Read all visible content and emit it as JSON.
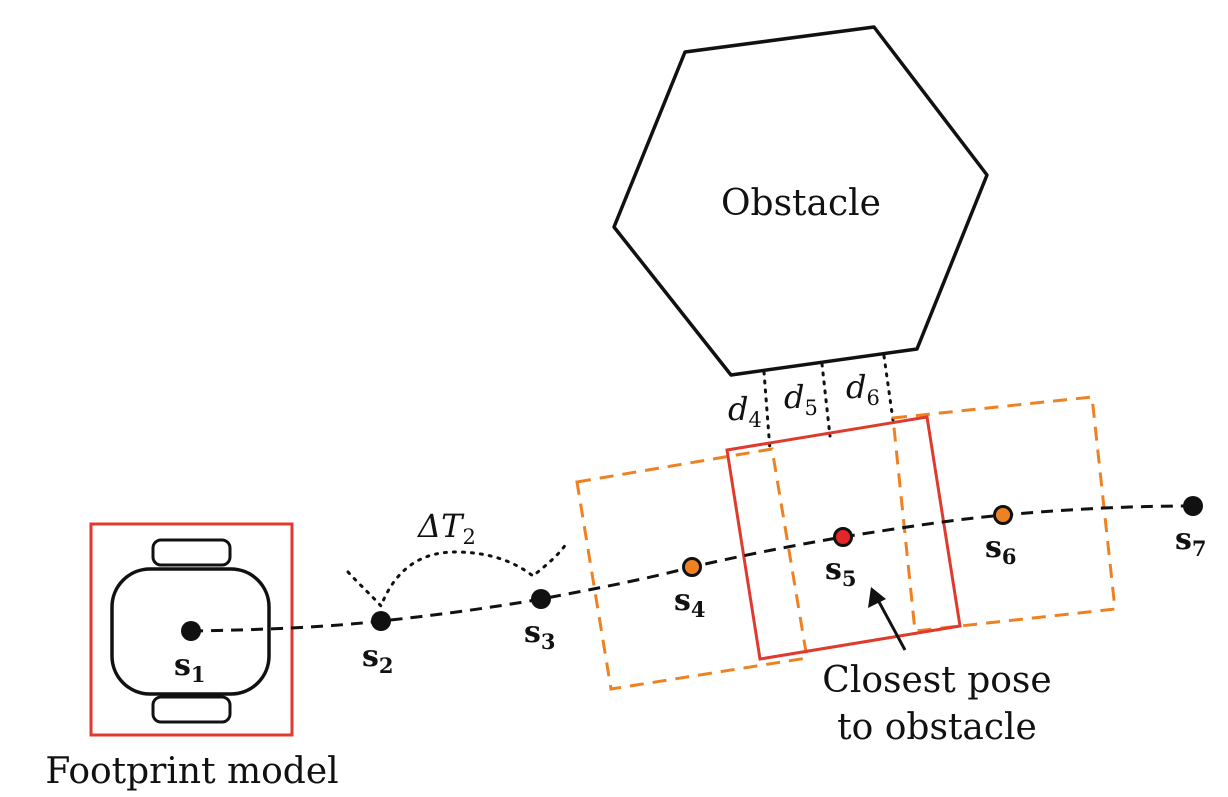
{
  "colors": {
    "stroke": "#111111",
    "footprint": "#e03a2e",
    "pose_dashed": "#ee8222",
    "orange_point": "#ee8222",
    "red_point": "#e2262a",
    "black_point": "#111111"
  },
  "labels": {
    "obstacle": "Obstacle",
    "footprint_model": "Footprint model",
    "closest_line1": "Closest pose",
    "closest_line2": "to obstacle",
    "delta_main": "ΔT",
    "delta_sub": "2"
  },
  "states": [
    {
      "id": "s1",
      "main": "s",
      "sub": "1",
      "type": "black"
    },
    {
      "id": "s2",
      "main": "s",
      "sub": "2",
      "type": "black"
    },
    {
      "id": "s3",
      "main": "s",
      "sub": "3",
      "type": "black"
    },
    {
      "id": "s4",
      "main": "s",
      "sub": "4",
      "type": "orange"
    },
    {
      "id": "s5",
      "main": "s",
      "sub": "5",
      "type": "red"
    },
    {
      "id": "s6",
      "main": "s",
      "sub": "6",
      "type": "orange"
    },
    {
      "id": "s7",
      "main": "s",
      "sub": "7",
      "type": "black"
    }
  ],
  "distances": [
    {
      "id": "d4",
      "main": "d",
      "sub": "4"
    },
    {
      "id": "d5",
      "main": "d",
      "sub": "5"
    },
    {
      "id": "d6",
      "main": "d",
      "sub": "6"
    }
  ]
}
